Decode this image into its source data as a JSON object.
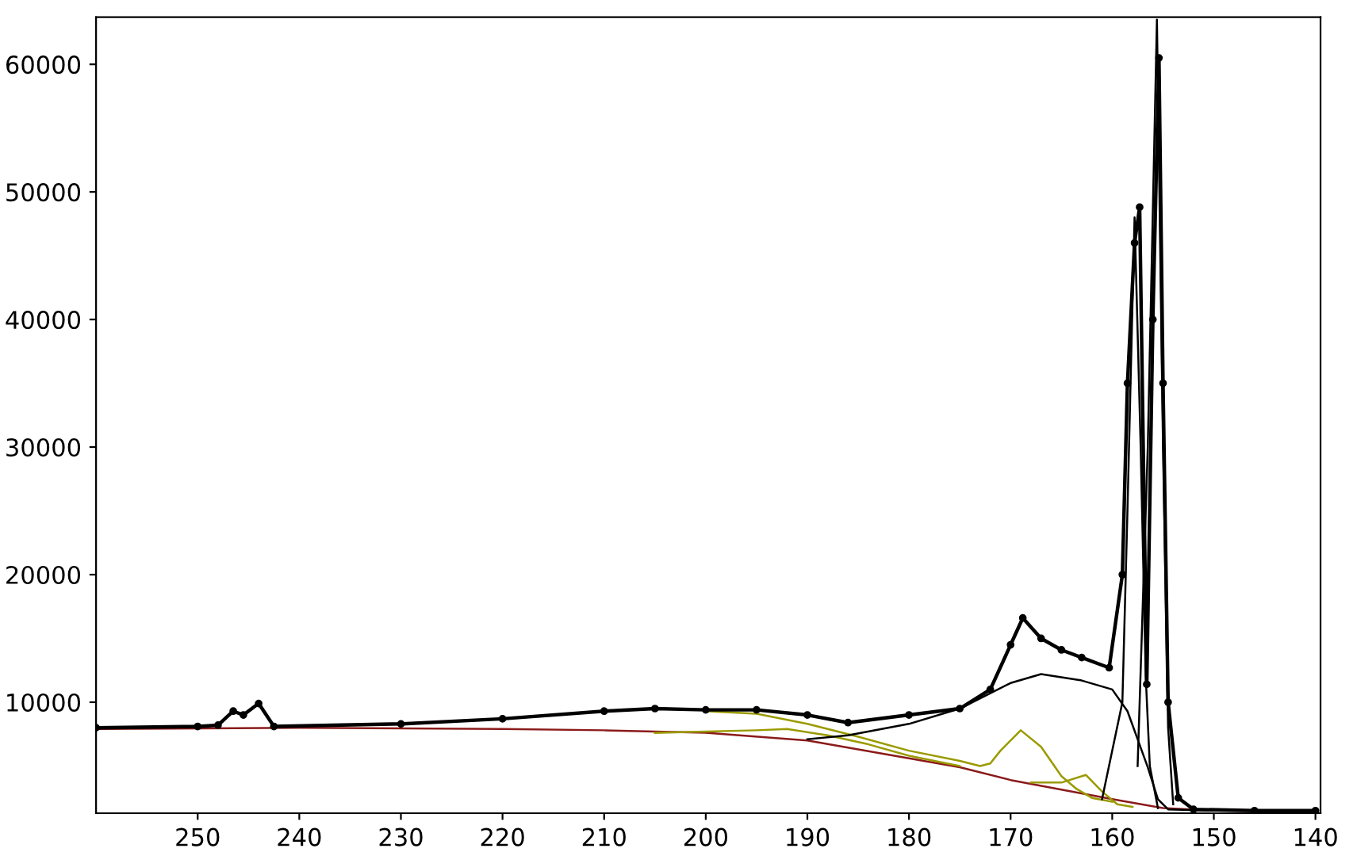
{
  "chart_data": {
    "type": "line",
    "xlim": [
      260,
      139.5
    ],
    "ylim": [
      1300,
      63700
    ],
    "xticks": [
      250,
      240,
      230,
      220,
      210,
      200,
      190,
      180,
      170,
      160,
      150,
      140
    ],
    "yticks": [
      10000,
      20000,
      30000,
      40000,
      50000,
      60000
    ],
    "grid": false,
    "legend": false,
    "series": [
      {
        "color": "#8b1a1a",
        "x": [
          260,
          240,
          220,
          210,
          200,
          190,
          180,
          175,
          170,
          165,
          160,
          155,
          150,
          140
        ],
        "values": [
          7900,
          8000,
          7900,
          7800,
          7600,
          7000,
          5600,
          4900,
          3900,
          3150,
          2400,
          1700,
          1500,
          1450
        ]
      },
      {
        "color": "#9a9a00",
        "x": [
          200,
          195,
          190,
          185,
          180,
          175,
          173,
          172,
          171,
          169,
          167,
          165,
          163.5,
          162,
          160
        ],
        "values": [
          9300,
          9100,
          8300,
          7300,
          6200,
          5400,
          5000,
          5200,
          6200,
          7800,
          6500,
          4200,
          3200,
          2500,
          2200
        ]
      },
      {
        "color": "#9a9a00",
        "x": [
          205,
          195,
          192,
          188,
          184,
          180,
          175
        ],
        "values": [
          7600,
          7800,
          7900,
          7400,
          6700,
          5800,
          5000
        ]
      },
      {
        "color": "#9a9a00",
        "x": [
          168,
          165,
          162.6,
          161,
          159.5,
          158
        ],
        "values": [
          3700,
          3700,
          4300,
          3000,
          2000,
          1800
        ]
      },
      {
        "color": "#000000",
        "x": [
          190,
          186,
          180,
          175,
          170,
          167,
          163,
          160,
          158.5,
          157.5,
          156.5,
          155.5,
          154.5,
          150
        ],
        "values": [
          7100,
          7400,
          8300,
          9500,
          11500,
          12200,
          11700,
          11000,
          9300,
          7100,
          4900,
          2400,
          1600,
          1500
        ]
      },
      {
        "color": "#000000",
        "x": [
          161,
          159,
          158.5,
          157.8,
          157.2,
          156.7,
          156.3,
          155.5
        ],
        "values": [
          2400,
          10000,
          25000,
          48000,
          30000,
          12000,
          5000,
          1700
        ]
      },
      {
        "color": "#000000",
        "x": [
          157.5,
          156.5,
          155.6,
          155,
          154.5,
          154
        ],
        "values": [
          5000,
          30000,
          63500,
          30000,
          8000,
          2000
        ]
      },
      {
        "color": "#000000",
        "marker": "circle",
        "x": [
          260,
          250,
          248,
          246.5,
          245.5,
          244,
          242.5,
          230,
          220,
          210,
          205,
          200,
          195,
          190,
          186,
          180,
          175,
          172,
          170,
          168.8,
          167,
          165,
          163,
          160.3,
          159,
          158.5,
          157.8,
          157.3,
          156.6,
          156,
          155.4,
          155,
          154.5,
          153.5,
          152,
          146,
          140
        ],
        "values": [
          8000,
          8100,
          8200,
          9300,
          9000,
          9900,
          8100,
          8300,
          8700,
          9300,
          9500,
          9400,
          9400,
          9000,
          8400,
          9000,
          9500,
          11000,
          14500,
          16600,
          15000,
          14100,
          13500,
          12700,
          20000,
          35000,
          46000,
          48800,
          11400,
          40000,
          60500,
          35000,
          10000,
          2500,
          1600,
          1500,
          1500
        ]
      }
    ]
  }
}
